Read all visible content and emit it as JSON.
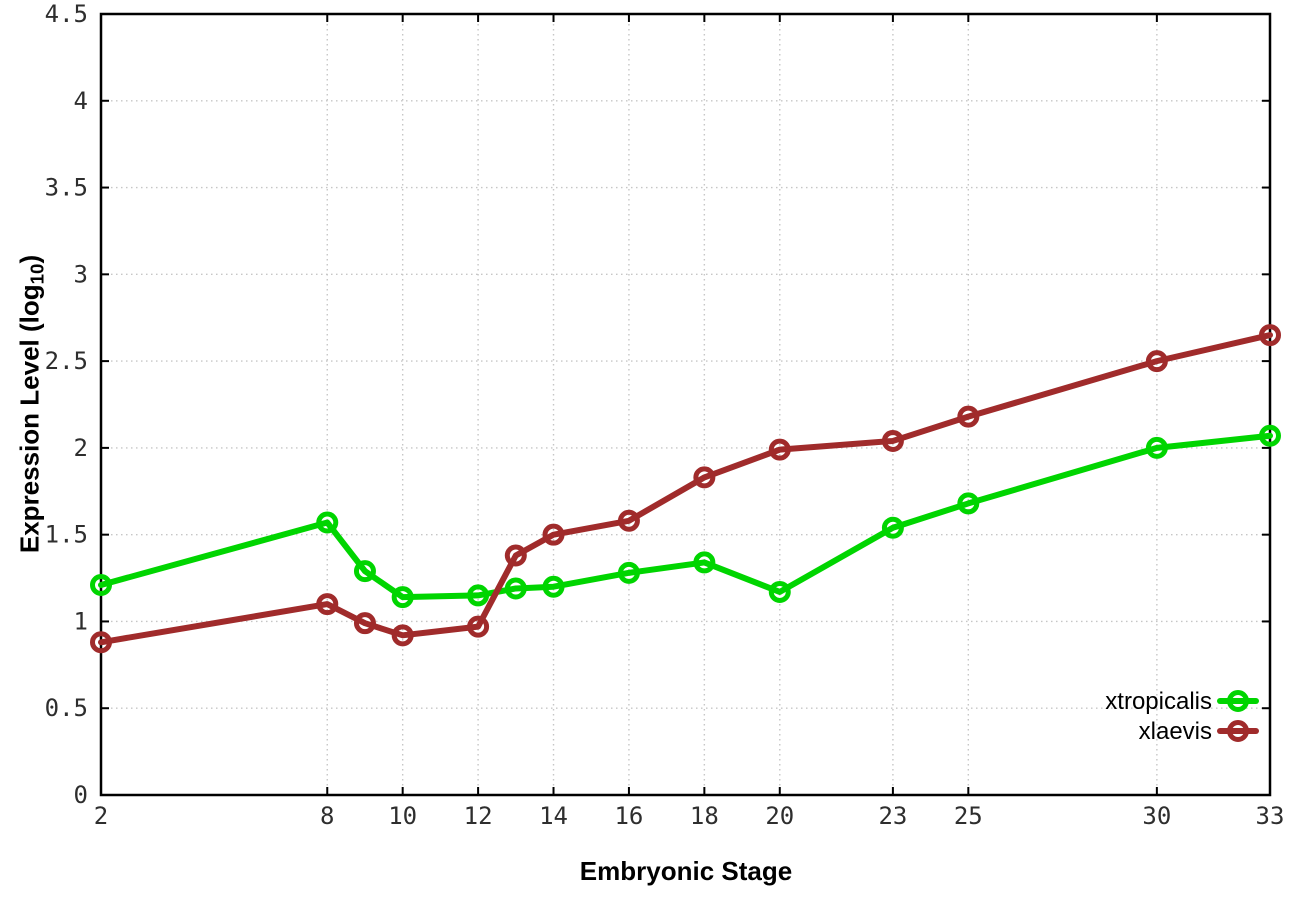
{
  "figure": {
    "background": "#ffffff",
    "border_color": "#000000",
    "grid_color": "#c6c6c6",
    "tick_label_color": "#2e2e2e"
  },
  "chart_data": {
    "type": "line",
    "title": "",
    "xlabel": "Embryonic Stage",
    "ylabel": {
      "main": "Expression Level (log",
      "sub": "10",
      "end": ")"
    },
    "xlim": [
      2,
      33
    ],
    "ylim": [
      0,
      4.5
    ],
    "xticks": [
      2,
      8,
      10,
      12,
      14,
      16,
      18,
      20,
      23,
      25,
      30,
      33
    ],
    "xtick_labels": [
      "2",
      "8",
      "10",
      "12",
      "14",
      "16",
      "18",
      "20",
      "23",
      "25",
      "30",
      "33"
    ],
    "yticks": [
      0,
      0.5,
      1,
      1.5,
      2,
      2.5,
      3,
      3.5,
      4,
      4.5
    ],
    "ytick_labels": [
      "0",
      "0.5",
      "1",
      "1.5",
      "2",
      "2.5",
      "3",
      "3.5",
      "4",
      "4.5"
    ],
    "grid": true,
    "grid_style": "dotted",
    "legend_position": "bottom-right",
    "x": [
      2,
      8,
      9,
      10,
      12,
      13,
      14,
      16,
      18,
      20,
      23,
      25,
      30,
      33
    ],
    "series": [
      {
        "name": "xtropicalis",
        "color": "#00d500",
        "marker": "open-circle",
        "values": [
          1.21,
          1.57,
          1.29,
          1.14,
          1.15,
          1.19,
          1.2,
          1.28,
          1.34,
          1.17,
          1.54,
          1.68,
          2.0,
          2.07
        ]
      },
      {
        "name": "xlaevis",
        "color": "#a02b2b",
        "marker": "open-circle",
        "values": [
          0.88,
          1.1,
          0.99,
          0.92,
          0.97,
          1.38,
          1.5,
          1.58,
          1.83,
          1.99,
          2.04,
          2.18,
          2.5,
          2.65
        ]
      }
    ]
  }
}
